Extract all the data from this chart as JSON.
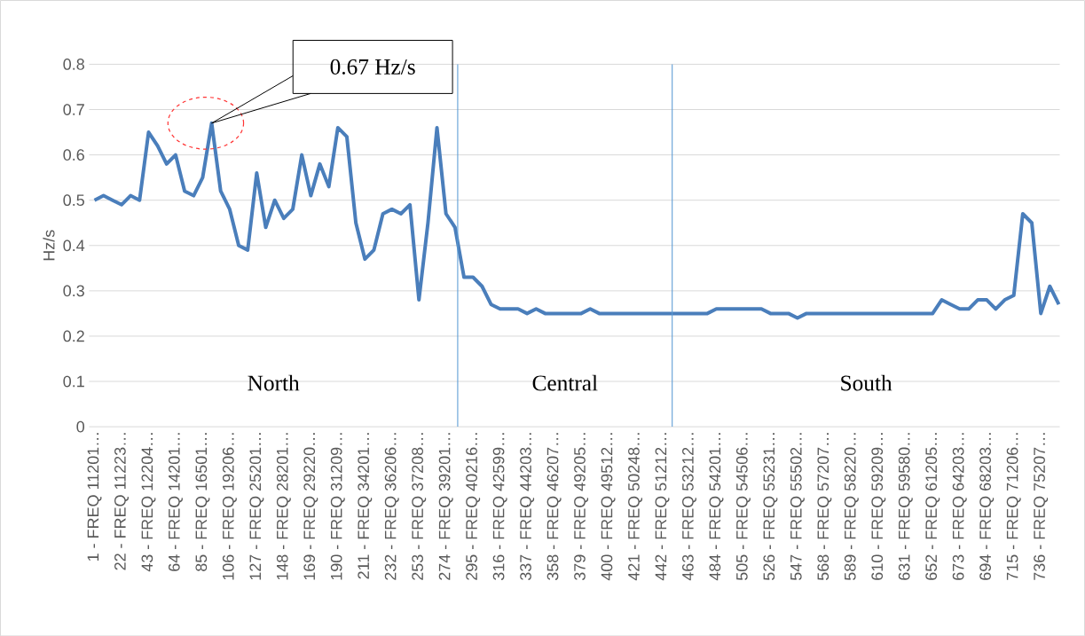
{
  "chart_data": {
    "type": "line",
    "ylabel": "Hz/s",
    "color": "#4a7ebb",
    "categories": [
      "1 - FREQ 11201…",
      null,
      null,
      "22 - FREQ 11223…",
      null,
      null,
      "43 - FREQ 12204…",
      null,
      null,
      "64 - FREQ 14201…",
      null,
      null,
      "85 - FREQ 16501…",
      null,
      null,
      "106 - FREQ 19206…",
      null,
      null,
      "127 - FREQ 25201…",
      null,
      null,
      "148 - FREQ 28201…",
      null,
      null,
      "169 - FREQ 29220…",
      null,
      null,
      "190 - FREQ 31209…",
      null,
      null,
      "211 - FREQ 34201…",
      null,
      null,
      "232 - FREQ 36206…",
      null,
      null,
      "253 - FREQ 37208…",
      null,
      null,
      "274 - FREQ 39201…",
      null,
      null,
      "295 - FREQ 40216…",
      null,
      null,
      "316 - FREQ 42599…",
      null,
      null,
      "337 - FREQ 44203…",
      null,
      null,
      "358 - FREQ 46207…",
      null,
      null,
      "379 - FREQ 49205…",
      null,
      null,
      "400 - FREQ 49512…",
      null,
      null,
      "421 - FREQ 50248…",
      null,
      null,
      "442 - FREQ 51212…",
      null,
      null,
      "463 - FREQ 53212…",
      null,
      null,
      "484 - FREQ 54201…",
      null,
      null,
      "505 - FREQ 54506…",
      null,
      null,
      "526 - FREQ 55231…",
      null,
      null,
      "547 - FREQ 55502…",
      null,
      null,
      "568 - FREQ 57207…",
      null,
      null,
      "589 - FREQ 58220…",
      null,
      null,
      "610 - FREQ 59209…",
      null,
      null,
      "631 - FREQ 59580…",
      null,
      null,
      "652 - FREQ 61205…",
      null,
      null,
      "673 - FREQ 64203…",
      null,
      null,
      "694 - FREQ 68203…",
      null,
      null,
      "715 - FREQ 71206…",
      null,
      null,
      "736 - FREQ 75207…",
      null,
      null
    ],
    "values": [
      0.5,
      0.51,
      0.5,
      0.49,
      0.51,
      0.5,
      0.65,
      0.62,
      0.58,
      0.6,
      0.52,
      0.51,
      0.55,
      0.67,
      0.52,
      0.48,
      0.4,
      0.39,
      0.56,
      0.44,
      0.5,
      0.46,
      0.48,
      0.6,
      0.51,
      0.58,
      0.53,
      0.66,
      0.64,
      0.45,
      0.37,
      0.39,
      0.47,
      0.48,
      0.47,
      0.49,
      0.28,
      0.45,
      0.66,
      0.47,
      0.44,
      0.33,
      0.33,
      0.31,
      0.27,
      0.26,
      0.26,
      0.26,
      0.25,
      0.26,
      0.25,
      0.25,
      0.25,
      0.25,
      0.25,
      0.26,
      0.25,
      0.25,
      0.25,
      0.25,
      0.25,
      0.25,
      0.25,
      0.25,
      0.25,
      0.25,
      0.25,
      0.25,
      0.25,
      0.26,
      0.26,
      0.26,
      0.26,
      0.26,
      0.26,
      0.25,
      0.25,
      0.25,
      0.24,
      0.25,
      0.25,
      0.25,
      0.25,
      0.25,
      0.25,
      0.25,
      0.25,
      0.25,
      0.25,
      0.25,
      0.25,
      0.25,
      0.25,
      0.25,
      0.28,
      0.27,
      0.26,
      0.26,
      0.28,
      0.28,
      0.26,
      0.28,
      0.29,
      0.47,
      0.45,
      0.25,
      0.31,
      0.27
    ],
    "ylim": [
      0,
      0.8
    ],
    "yticks": [
      0,
      0.1,
      0.2,
      0.3,
      0.4,
      0.5,
      0.6,
      0.7,
      0.8
    ],
    "grid": "y",
    "annotations": [
      "0.67 Hz/s",
      "North",
      "Central",
      "South"
    ]
  }
}
